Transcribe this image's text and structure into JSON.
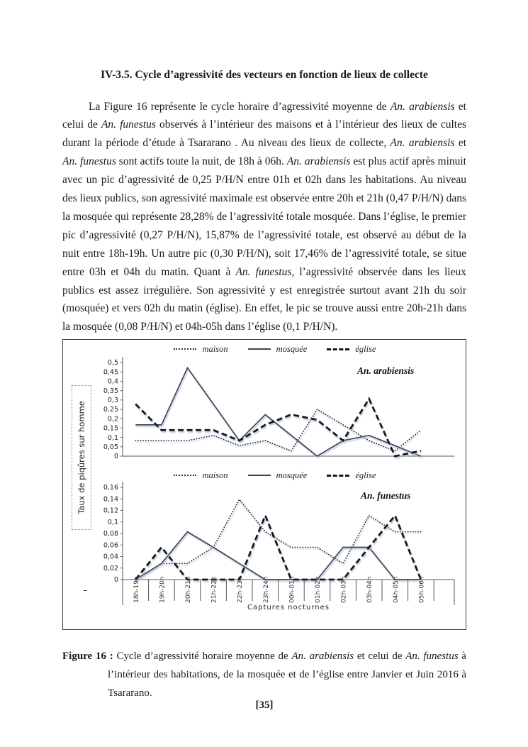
{
  "page": {
    "number_display": "[35]"
  },
  "heading": "IV-3.5. Cycle d’agressivité des vecteurs en fonction de lieux de collecte",
  "body": {
    "segments": [
      {
        "t": "La Figure 16 représente le cycle horaire d’agressivité moyenne de "
      },
      {
        "t": "An. arabiensis",
        "i": true
      },
      {
        "t": " et celui de "
      },
      {
        "t": "An. funestus",
        "i": true
      },
      {
        "t": " observés à l’intérieur des maisons et à l’intérieur des lieux de cultes durant la période d’étude à Tsararano . Au niveau des lieux de collecte, "
      },
      {
        "t": "An. arabiensis",
        "i": true
      },
      {
        "t": " et "
      },
      {
        "t": "An. funestus",
        "i": true
      },
      {
        "t": " sont actifs toute la nuit, de 18h à 06h. "
      },
      {
        "t": "An. arabiensis",
        "i": true
      },
      {
        "t": " est plus actif après minuit avec un pic d’agressivité de 0,25 P/H/N entre 01h et 02h dans les habitations. Au niveau des lieux publics, son agressivité maximale est observée entre 20h et 21h (0,47 P/H/N) dans la mosquée qui représente 28,28% de l’agressivité totale mosquée. Dans l’église, le premier pic d’agressivité (0,27 P/H/N), 15,87% de l’agressivité totale, est observé au début de la nuit entre 18h-19h. Un autre pic (0,30 P/H/N), soit 17,46% de l’agressivité totale, se situe entre 03h et 04h du matin. Quant à "
      },
      {
        "t": "An. funestus,",
        "i": true
      },
      {
        "t": " l’agressivité observée dans les lieux publics est assez irrégulière. Son agressivité y est enregistrée surtout avant 21h du soir (mosquée) et vers 02h du matin (église). En effet, le pic se trouve aussi entre 20h-21h dans la mosquée (0,08 P/H/N) et 04h-05h dans l’église (0,1 P/H/N)."
      }
    ]
  },
  "figure": {
    "axis_label_y": "Taux de piqûres sur homme",
    "axis_label_x": "Captures nocturnes",
    "dash_mark": "–",
    "caption": {
      "segments": [
        {
          "t": "Figure 16 : ",
          "b": true
        },
        {
          "t": "Cycle d’agressivité horaire moyenne de "
        },
        {
          "t": "An. arabiensis",
          "i": true
        },
        {
          "t": " et celui de "
        },
        {
          "t": "An. funestus",
          "i": true
        },
        {
          "t": " à l’intérieur des habitations, de la mosquée et de l’église entre Janvier et Juin 2016 à Tsararano."
        }
      ]
    }
  },
  "chart_data": [
    {
      "type": "line",
      "title": "An. arabiensis",
      "xlabel": "Captures nocturnes",
      "ylabel": "Taux de piqûres sur homme",
      "ylim": [
        0,
        0.5
      ],
      "ytick_labels": [
        "0,5",
        "0,45",
        "0,4",
        "0,35",
        "0,3",
        "0,25",
        "0,2",
        "0,15",
        "0,1",
        "0,05",
        "0"
      ],
      "legend_position": "top",
      "grid": false,
      "categories": [
        "18h-19h",
        "19h-20h",
        "20h-21h",
        "21h-22h",
        "22h-23h",
        "23h-24h",
        "00h-01h",
        "01h-02h",
        "02h-03h",
        "03h-04h",
        "04h-05h",
        "05h-06h"
      ],
      "series": [
        {
          "name": "maison",
          "style": "dotted",
          "color": "#2e3140",
          "values": [
            0.083,
            0.083,
            0.083,
            0.111,
            0.056,
            0.083,
            0.028,
            0.25,
            0.167,
            0.083,
            0.028,
            0.139
          ]
        },
        {
          "name": "mosquée",
          "style": "solid",
          "color": "#3f4254",
          "values": [
            0.167,
            0.167,
            0.472,
            0.278,
            0.083,
            0.222,
            0.111,
            0,
            0.083,
            0.111,
            0.056,
            0
          ]
        },
        {
          "name": "église",
          "style": "dashed",
          "color": "#161616",
          "values": [
            0.278,
            0.139,
            0.139,
            0.139,
            0.083,
            0.167,
            0.222,
            0.194,
            0.083,
            0.306,
            0,
            0.028
          ]
        }
      ]
    },
    {
      "type": "line",
      "title": "An. funestus",
      "xlabel": "Captures nocturnes",
      "ylabel": "Taux de piqûres sur homme",
      "ylim": [
        0,
        0.16
      ],
      "ytick_labels": [
        "0,16",
        "0,14",
        "0,12",
        "0,1",
        "0,08",
        "0,06",
        "0,04",
        "0,02",
        "0"
      ],
      "legend_position": "top",
      "grid": false,
      "categories": [
        "18h-19h",
        "19h-20h",
        "20h-21h",
        "21h-22h",
        "22h-23h",
        "23h-24h",
        "00h-01h",
        "01h-02h",
        "02h-03h",
        "03h-04h",
        "04h-05h",
        "05h-06h"
      ],
      "series": [
        {
          "name": "maison",
          "style": "dotted",
          "color": "#2e3140",
          "values": [
            0,
            0.028,
            0.028,
            0.056,
            0.139,
            0.083,
            0.056,
            0.056,
            0.028,
            0.111,
            0.083,
            0.083
          ]
        },
        {
          "name": "mosquée",
          "style": "solid",
          "color": "#3f4254",
          "values": [
            0,
            0.028,
            0.083,
            0.056,
            0.028,
            0,
            0,
            0,
            0.056,
            0.056,
            0,
            0
          ]
        },
        {
          "name": "église",
          "style": "dashed",
          "color": "#161616",
          "values": [
            0,
            0.056,
            0,
            0,
            0,
            0.111,
            0,
            0,
            0,
            0.056,
            0.111,
            0
          ]
        }
      ]
    }
  ]
}
